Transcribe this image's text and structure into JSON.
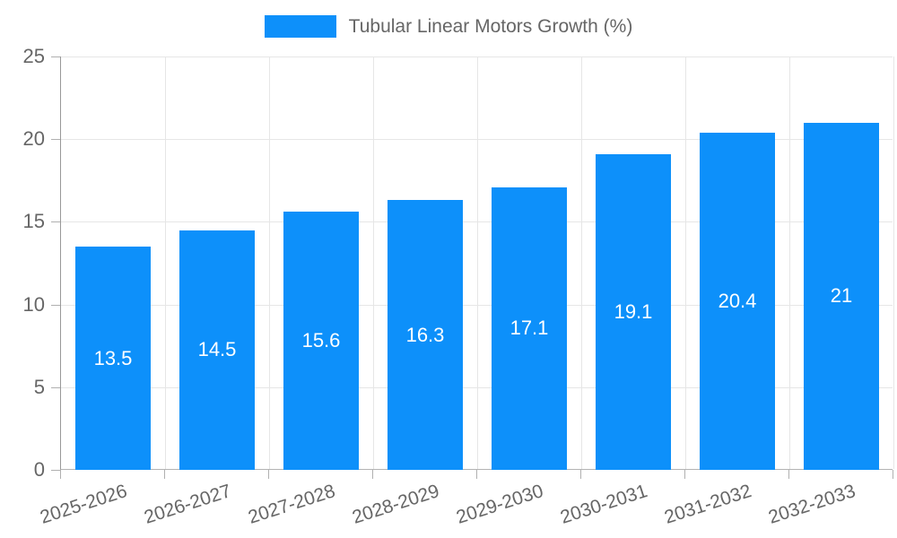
{
  "colors": {
    "bar": "#0d90fa",
    "grid": "#e6e6e6",
    "axis_line": "#999999",
    "axis_line_bottom": "#b3b3b3",
    "tick_mark": "#b0b0b0",
    "tick_text": "#666666",
    "bar_label_text": "#ffffff",
    "background": "#ffffff"
  },
  "legend": {
    "label": "Tubular Linear Motors Growth (%)"
  },
  "chart_data": {
    "type": "bar",
    "title": "",
    "series_name": "Tubular Linear Motors Growth (%)",
    "categories": [
      "2025-2026",
      "2026-2027",
      "2027-2028",
      "2028-2029",
      "2029-2030",
      "2030-2031",
      "2031-2032",
      "2032-2033"
    ],
    "values": [
      13.5,
      14.5,
      15.6,
      16.3,
      17.1,
      19.1,
      20.4,
      21
    ],
    "xlabel": "",
    "ylabel": "",
    "ylim": [
      0,
      25
    ],
    "yticks": [
      0,
      5,
      10,
      15,
      20,
      25
    ],
    "grid": true,
    "legend_position": "top",
    "x_label_rotation_deg": -18,
    "bar_value_labels_inside": true
  }
}
